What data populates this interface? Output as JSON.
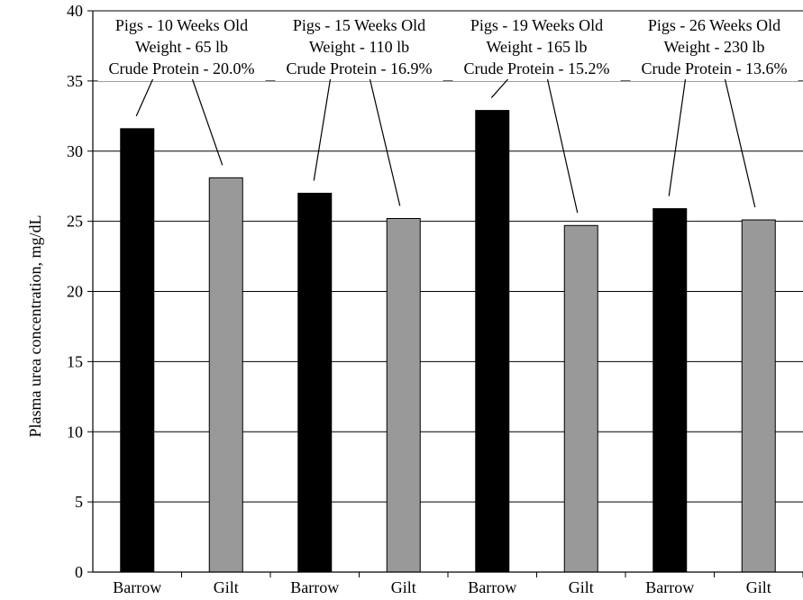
{
  "chart_data": {
    "type": "bar",
    "categories": [
      "Barrow",
      "Gilt",
      "Barrow",
      "Gilt",
      "Barrow",
      "Gilt",
      "Barrow",
      "Gilt"
    ],
    "values": [
      31.6,
      28.1,
      27.0,
      25.2,
      32.9,
      24.7,
      25.9,
      25.1
    ],
    "bar_colors": [
      "#000000",
      "#999999",
      "#000000",
      "#999999",
      "#000000",
      "#999999",
      "#000000",
      "#999999"
    ],
    "ylabel": "Plasma urea concentration, mg/dL",
    "xlabel": "",
    "ylim": [
      0,
      40
    ],
    "yticks": [
      0,
      5,
      10,
      15,
      20,
      25,
      30,
      35,
      40
    ],
    "grid": true,
    "annotations": [
      {
        "lines": [
          "Pigs - 10 Weeks Old",
          "Weight - 65 lb",
          "Crude Protein - 20.0%"
        ],
        "bars": [
          0,
          1
        ]
      },
      {
        "lines": [
          "Pigs - 15 Weeks Old",
          "Weight - 110 lb",
          "Crude Protein - 16.9%"
        ],
        "bars": [
          2,
          3
        ]
      },
      {
        "lines": [
          "Pigs - 19 Weeks Old",
          "Weight - 165 lb",
          "Crude Protein - 15.2%"
        ],
        "bars": [
          4,
          5
        ]
      },
      {
        "lines": [
          "Pigs - 26 Weeks Old",
          "Weight - 230 lb",
          "Crude Protein - 13.6%"
        ],
        "bars": [
          6,
          7
        ]
      }
    ]
  }
}
